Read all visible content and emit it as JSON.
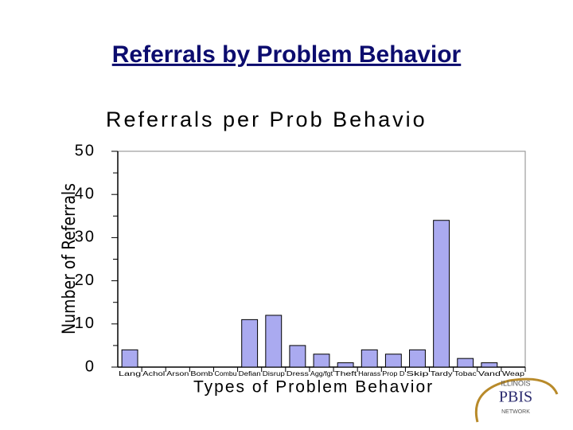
{
  "slide_title": "Referrals by Problem Behavior",
  "chart_data": {
    "type": "bar",
    "title": "Referrals per Prob Behavio",
    "x_label": "Types of Problem Behavior",
    "y_label": "Number of Referrals",
    "categories": [
      "Lang",
      "Achol",
      "Arson",
      "Bomb",
      "Combu",
      "Defian",
      "Disrup",
      "Dress",
      "Agg/fgt",
      "Theft",
      "Harass",
      "Prop D",
      "Skip",
      "Tardy",
      "Tobac",
      "Vand",
      "Weap"
    ],
    "values": [
      4,
      0,
      0,
      0,
      0,
      11,
      12,
      5,
      3,
      1,
      4,
      3,
      4,
      34,
      2,
      1,
      0
    ],
    "color": "#aaaaf0",
    "ylim": [
      0,
      50
    ],
    "yticks": [
      0,
      10,
      20,
      30,
      40,
      50
    ]
  },
  "logo": {
    "top": "ILLINOIS",
    "main": "PBIS",
    "bottom": "NETWORK"
  }
}
